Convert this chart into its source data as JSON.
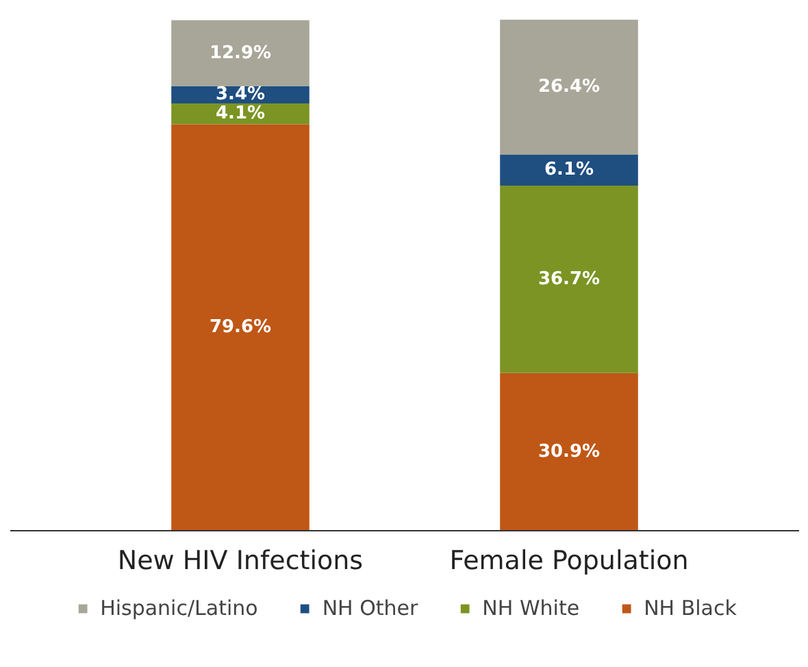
{
  "chart_data": {
    "type": "bar",
    "stacked": true,
    "categories": [
      "New HIV Infections",
      "Female Population"
    ],
    "series": [
      {
        "name": "NH Black",
        "color": "#bf5716",
        "values": [
          79.6,
          30.9
        ],
        "value_labels": [
          "79.6%",
          "30.9%"
        ]
      },
      {
        "name": "NH White",
        "color": "#7b9424",
        "values": [
          4.1,
          36.7
        ],
        "value_labels": [
          "4.1%",
          "36.7%"
        ]
      },
      {
        "name": "NH Other",
        "color": "#1f4e80",
        "values": [
          3.4,
          6.1
        ],
        "value_labels": [
          "3.4%",
          "6.1%"
        ]
      },
      {
        "name": "Hispanic/Latino",
        "color": "#a8a698",
        "values": [
          12.9,
          26.4
        ],
        "value_labels": [
          "12.9%",
          "26.4%"
        ]
      }
    ],
    "data_labels": true,
    "legend": "bottom",
    "grid": false,
    "tick_labels": "x"
  }
}
